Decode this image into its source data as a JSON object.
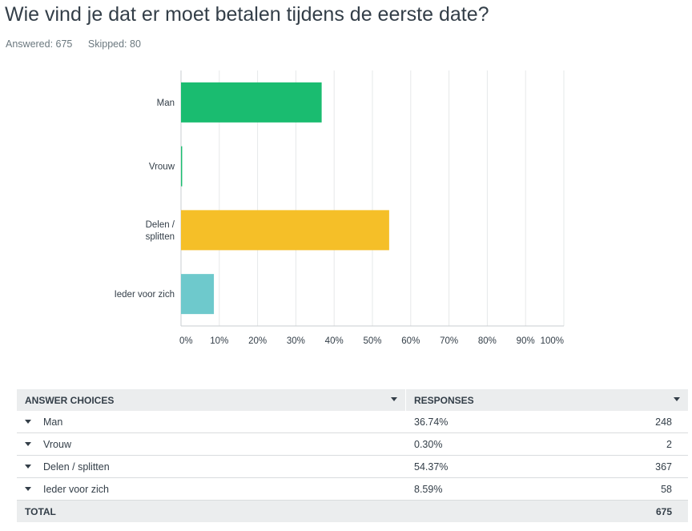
{
  "question": {
    "title": "Wie vind je dat er moet betalen tijdens de eerste date?",
    "answered": "Answered: 675",
    "skipped": "Skipped: 80"
  },
  "chart_data": {
    "type": "bar",
    "orientation": "horizontal",
    "categories": [
      "Man",
      "Vrouw",
      "Delen / splitten",
      "Ieder voor zich"
    ],
    "category_lines": [
      [
        "Man"
      ],
      [
        "Vrouw"
      ],
      [
        "Delen /",
        "splitten"
      ],
      [
        "Ieder voor zich"
      ]
    ],
    "values": [
      36.74,
      0.3,
      54.37,
      8.59
    ],
    "colors": [
      "#1abc70",
      "#1abc70",
      "#f5bf28",
      "#6ec9cc"
    ],
    "xlim": [
      0,
      100
    ],
    "ticks": [
      0,
      10,
      20,
      30,
      40,
      50,
      60,
      70,
      80,
      90,
      100
    ],
    "tick_labels": [
      "0%",
      "10%",
      "20%",
      "30%",
      "40%",
      "50%",
      "60%",
      "70%",
      "80%",
      "90%",
      "100%"
    ],
    "grid": true
  },
  "table": {
    "header_choices": "ANSWER CHOICES",
    "header_responses": "RESPONSES",
    "rows": [
      {
        "choice": "Man",
        "percent": "36.74%",
        "count": "248"
      },
      {
        "choice": "Vrouw",
        "percent": "0.30%",
        "count": "2"
      },
      {
        "choice": "Delen / splitten",
        "percent": "54.37%",
        "count": "367"
      },
      {
        "choice": "Ieder voor zich",
        "percent": "8.59%",
        "count": "58"
      }
    ],
    "total_label": "TOTAL",
    "total_count": "675"
  }
}
